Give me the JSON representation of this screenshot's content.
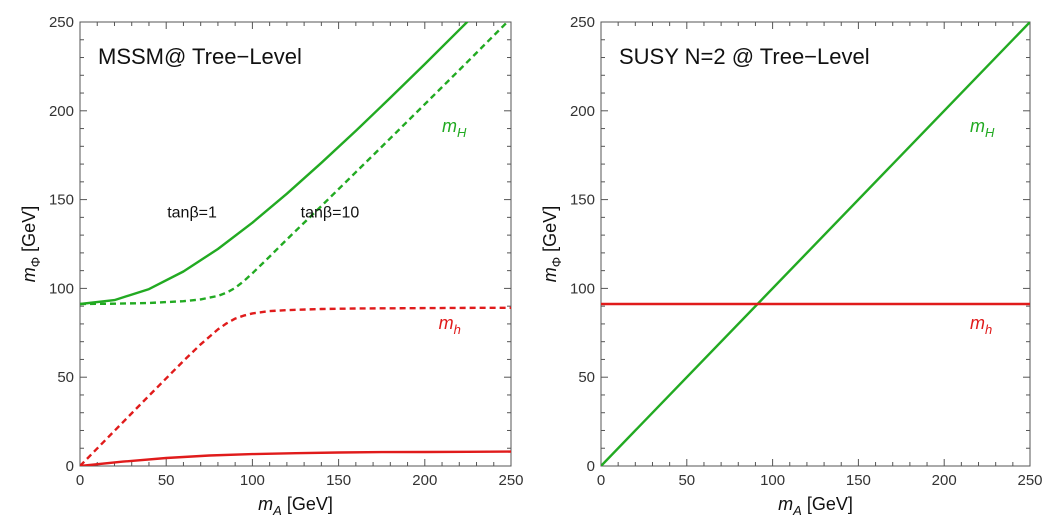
{
  "colors": {
    "green": "#22AA22",
    "red": "#E01B1B",
    "frame": "#555555"
  },
  "chart_data": [
    {
      "type": "line",
      "title": "MSSM@ Tree−Level",
      "xlabel_var": "m",
      "xlabel_sub": "A",
      "xlabel_unit": " [GeV]",
      "ylabel_var": "m",
      "ylabel_sub": "Φ",
      "ylabel_unit": " [GeV]",
      "xlim": [
        0,
        250
      ],
      "ylim": [
        0,
        250
      ],
      "xticks": [
        "0",
        "50",
        "100",
        "150",
        "200",
        "250"
      ],
      "yticks": [
        "0",
        "50",
        "100",
        "150",
        "200",
        "250"
      ],
      "grid": false,
      "series": [
        {
          "label": "m_H, tanβ=1",
          "color": "green",
          "style": "solid",
          "x": [
            0,
            20,
            40,
            60,
            80,
            100,
            120,
            140,
            160,
            180,
            200,
            220,
            240,
            250
          ],
          "y": [
            91.2,
            93.4,
            99.6,
            109.5,
            122.2,
            137.0,
            153.3,
            170.7,
            188.7,
            207.3,
            226.3,
            245.6,
            265.0,
            274.8
          ]
        },
        {
          "label": "m_H, tanβ=10",
          "color": "green",
          "style": "dashed",
          "x": [
            0,
            20,
            40,
            60,
            70,
            80,
            85,
            90,
            95,
            100,
            110,
            120,
            140,
            160,
            180,
            200,
            220,
            240,
            250
          ],
          "y": [
            91.2,
            91.4,
            91.8,
            92.8,
            93.8,
            95.8,
            97.6,
            100.3,
            104.1,
            108.5,
            117.9,
            127.6,
            146.4,
            165.4,
            184.5,
            203.7,
            223.0,
            242.4,
            252.1
          ]
        },
        {
          "label": "m_h, tanβ=10",
          "color": "red",
          "style": "dashed",
          "x": [
            0,
            20,
            40,
            60,
            70,
            80,
            85,
            90,
            95,
            100,
            110,
            120,
            140,
            160,
            180,
            200,
            220,
            240,
            250
          ],
          "y": [
            0,
            19.8,
            39.6,
            59.1,
            68.5,
            76.9,
            80.3,
            83.0,
            84.7,
            85.9,
            87.2,
            87.8,
            88.4,
            88.7,
            88.8,
            88.9,
            89.0,
            89.1,
            89.1
          ]
        },
        {
          "label": "m_h, tanβ=1",
          "color": "red",
          "style": "solid",
          "x": [
            0,
            25,
            50,
            75,
            100,
            125,
            150,
            175,
            200,
            225,
            250
          ],
          "y": [
            0,
            2.5,
            4.5,
            5.9,
            6.7,
            7.2,
            7.6,
            7.8,
            7.9,
            8.0,
            8.1
          ]
        }
      ],
      "annotations": {
        "tanb1": {
          "text": "tanβ=1",
          "x": 65,
          "y": 140
        },
        "tanb10": {
          "text": "tanβ=10",
          "x": 145,
          "y": 140
        },
        "mH": {
          "var": "m",
          "sub": "H",
          "x": 210,
          "y": 188,
          "color": "green"
        },
        "mh": {
          "var": "m",
          "sub": "h",
          "x": 208,
          "y": 77,
          "color": "red"
        }
      }
    },
    {
      "type": "line",
      "title": "SUSY N=2 @ Tree−Level",
      "xlabel_var": "m",
      "xlabel_sub": "A",
      "xlabel_unit": " [GeV]",
      "ylabel_var": "m",
      "ylabel_sub": "Φ",
      "ylabel_unit": " [GeV]",
      "xlim": [
        0,
        250
      ],
      "ylim": [
        0,
        250
      ],
      "xticks": [
        "0",
        "50",
        "100",
        "150",
        "200",
        "250"
      ],
      "yticks": [
        "0",
        "50",
        "100",
        "150",
        "200",
        "250"
      ],
      "grid": false,
      "series": [
        {
          "label": "m_H",
          "color": "green",
          "style": "solid",
          "x": [
            0,
            250
          ],
          "y": [
            0,
            250
          ]
        },
        {
          "label": "m_h",
          "color": "red",
          "style": "solid",
          "x": [
            0,
            250
          ],
          "y": [
            91.2,
            91.2
          ]
        }
      ],
      "annotations": {
        "mH": {
          "var": "m",
          "sub": "H",
          "x": 215,
          "y": 188,
          "color": "green"
        },
        "mh": {
          "var": "m",
          "sub": "h",
          "x": 215,
          "y": 77,
          "color": "red"
        }
      }
    }
  ]
}
